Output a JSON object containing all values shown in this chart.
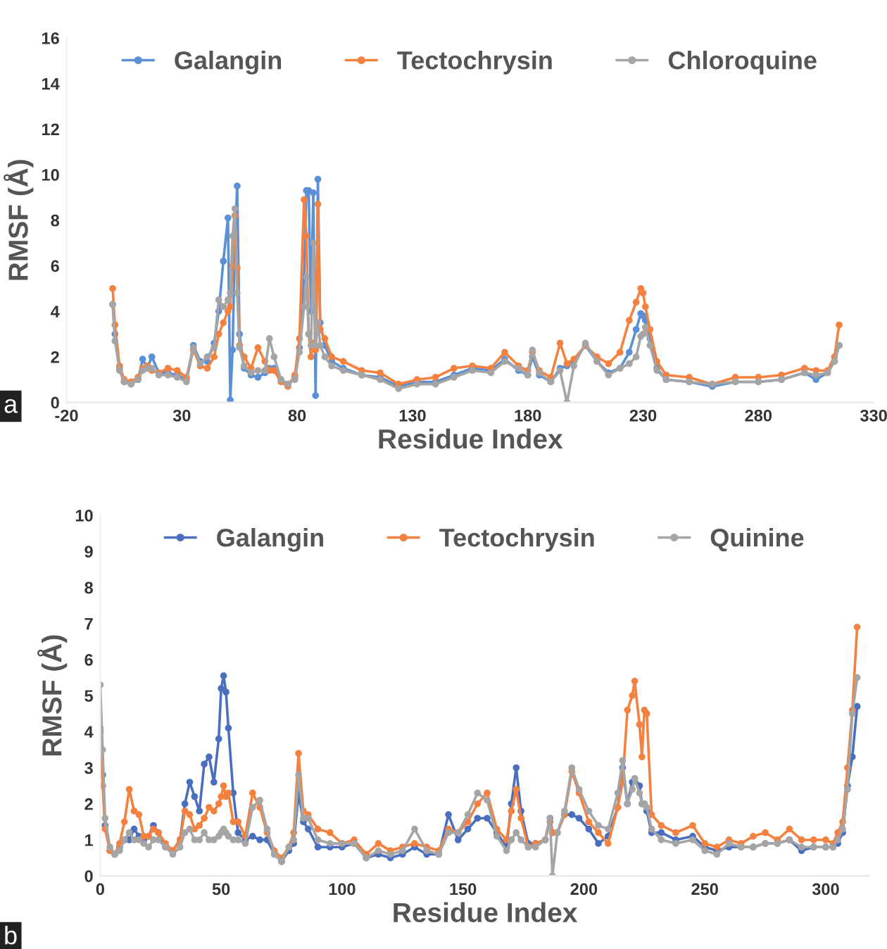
{
  "chart_data": [
    {
      "type": "line",
      "xlabel": "Residue Index",
      "ylabel": "RMSF (Å)",
      "annotations": [
        "a"
      ],
      "xlim": [
        -20,
        330
      ],
      "xticks": [
        -20,
        30,
        80,
        130,
        180,
        230,
        280,
        330
      ],
      "ylim": [
        0,
        16
      ],
      "yticks": [
        0,
        2,
        4,
        6,
        8,
        10,
        12,
        14,
        16
      ],
      "legend": "top",
      "grid": false,
      "marker": "circle",
      "line_style": "solid",
      "x": [
        0,
        1,
        3,
        5,
        8,
        11,
        13,
        15,
        17,
        20,
        24,
        28,
        32,
        35,
        38,
        41,
        44,
        46,
        48,
        50,
        51,
        52,
        53,
        54,
        55,
        57,
        60,
        63,
        66,
        68,
        70,
        73,
        76,
        79,
        81,
        83,
        84,
        85,
        86,
        87,
        88,
        89,
        90,
        92,
        95,
        100,
        108,
        116,
        124,
        132,
        140,
        148,
        156,
        164,
        170,
        176,
        180,
        182,
        185,
        190,
        194,
        197,
        200,
        205,
        210,
        215,
        220,
        224,
        227,
        229,
        230,
        231,
        233,
        236,
        240,
        250,
        260,
        270,
        280,
        290,
        300,
        305,
        310,
        313,
        315
      ],
      "series": [
        {
          "name": "Galangin",
          "color": "#5b8fd6",
          "values": [
            4.3,
            3.0,
            1.5,
            0.9,
            0.8,
            1.0,
            1.9,
            1.5,
            2.0,
            1.3,
            1.3,
            1.2,
            1.0,
            2.5,
            1.8,
            1.8,
            2.6,
            4.0,
            6.2,
            8.1,
            0.1,
            2.3,
            7.0,
            9.5,
            3.0,
            1.5,
            1.2,
            1.1,
            1.3,
            1.5,
            1.5,
            1.0,
            0.8,
            1.1,
            2.4,
            5.5,
            9.3,
            9.3,
            4.0,
            9.2,
            0.3,
            9.8,
            3.5,
            2.5,
            1.8,
            1.5,
            1.2,
            1.1,
            0.7,
            0.9,
            0.9,
            1.2,
            1.5,
            1.4,
            1.9,
            1.4,
            1.2,
            2.0,
            1.2,
            0.9,
            1.5,
            1.6,
            1.8,
            2.5,
            1.8,
            1.3,
            1.5,
            2.2,
            3.2,
            3.9,
            3.8,
            3.6,
            2.8,
            1.5,
            1.0,
            0.9,
            0.7,
            0.9,
            0.9,
            1.0,
            1.3,
            1.0,
            1.3,
            1.8,
            2.5
          ]
        },
        {
          "name": "Tectochrysin",
          "color": "#f4813f",
          "values": [
            5.0,
            3.4,
            1.6,
            1.0,
            0.9,
            1.1,
            1.5,
            1.6,
            1.4,
            1.3,
            1.5,
            1.4,
            1.1,
            2.3,
            1.6,
            1.5,
            2.0,
            3.0,
            3.5,
            4.0,
            4.2,
            6.0,
            8.2,
            5.9,
            2.5,
            2.0,
            1.5,
            2.4,
            1.8,
            1.4,
            1.4,
            0.9,
            0.7,
            1.2,
            2.8,
            8.9,
            7.3,
            3.0,
            2.0,
            2.6,
            2.3,
            8.7,
            3.2,
            2.8,
            2.0,
            1.8,
            1.4,
            1.3,
            0.8,
            1.0,
            1.1,
            1.5,
            1.6,
            1.5,
            2.2,
            1.6,
            1.4,
            2.2,
            1.4,
            1.1,
            2.6,
            1.7,
            1.9,
            2.5,
            2.0,
            1.7,
            2.2,
            3.6,
            4.4,
            5.0,
            4.8,
            4.2,
            3.2,
            1.8,
            1.2,
            1.1,
            0.8,
            1.1,
            1.1,
            1.2,
            1.5,
            1.4,
            1.4,
            2.0,
            3.4
          ]
        },
        {
          "name": "Chloroquine",
          "color": "#a5a5a5",
          "values": [
            4.3,
            2.7,
            1.4,
            0.9,
            0.8,
            1.0,
            1.4,
            1.5,
            1.5,
            1.2,
            1.2,
            1.1,
            0.9,
            2.4,
            1.7,
            2.0,
            2.4,
            4.5,
            4.2,
            4.5,
            4.8,
            7.3,
            8.5,
            4.8,
            2.4,
            1.6,
            1.3,
            1.4,
            1.4,
            2.8,
            2.0,
            1.0,
            0.8,
            1.0,
            2.2,
            4.2,
            5.5,
            3.0,
            2.5,
            7.0,
            2.5,
            3.5,
            2.5,
            2.0,
            1.6,
            1.4,
            1.2,
            1.0,
            0.6,
            0.8,
            0.8,
            1.1,
            1.4,
            1.3,
            1.8,
            1.5,
            1.2,
            2.3,
            1.3,
            0.9,
            1.4,
            0.0,
            1.6,
            2.6,
            1.8,
            1.2,
            1.5,
            1.7,
            2.0,
            2.9,
            3.0,
            3.3,
            2.5,
            1.4,
            1.0,
            0.9,
            0.8,
            0.9,
            0.9,
            1.0,
            1.3,
            1.2,
            1.3,
            1.8,
            2.5
          ]
        }
      ]
    },
    {
      "type": "line",
      "xlabel": "Residue Index",
      "ylabel": "RMSF (Å)",
      "annotations": [
        "b"
      ],
      "xlim": [
        0,
        318
      ],
      "xticks": [
        0,
        50,
        100,
        150,
        200,
        250,
        300
      ],
      "ylim": [
        0,
        10
      ],
      "yticks": [
        0,
        1,
        2,
        3,
        4,
        5,
        6,
        7,
        8,
        9,
        10
      ],
      "legend": "top",
      "grid": false,
      "marker": "circle",
      "line_style": "solid",
      "x": [
        0,
        1,
        2,
        4,
        6,
        8,
        10,
        12,
        14,
        16,
        18,
        20,
        22,
        24,
        27,
        30,
        33,
        35,
        37,
        39,
        41,
        43,
        45,
        47,
        49,
        50,
        51,
        52,
        53,
        55,
        57,
        60,
        63,
        66,
        69,
        72,
        75,
        78,
        80,
        82,
        84,
        86,
        90,
        95,
        100,
        105,
        110,
        115,
        120,
        125,
        130,
        135,
        140,
        144,
        148,
        152,
        156,
        160,
        164,
        168,
        170,
        172,
        174,
        177,
        180,
        184,
        186,
        187,
        189,
        192,
        195,
        198,
        202,
        206,
        210,
        214,
        216,
        218,
        220,
        221,
        223,
        224,
        225,
        226,
        228,
        232,
        238,
        245,
        250,
        255,
        260,
        265,
        270,
        275,
        280,
        285,
        290,
        295,
        300,
        303,
        305,
        307,
        309,
        311,
        313
      ],
      "series": [
        {
          "name": "Galangin",
          "color": "#4a6fbf",
          "values": [
            4.0,
            2.8,
            1.4,
            0.7,
            0.6,
            0.8,
            1.0,
            1.0,
            1.3,
            1.1,
            1.0,
            1.1,
            1.4,
            1.2,
            0.8,
            0.7,
            1.0,
            2.0,
            2.6,
            2.2,
            1.8,
            3.1,
            3.3,
            2.6,
            3.8,
            5.2,
            5.55,
            5.1,
            4.1,
            2.3,
            1.2,
            1.0,
            1.1,
            1.0,
            1.0,
            0.6,
            0.4,
            0.7,
            0.9,
            2.3,
            1.5,
            1.3,
            0.8,
            0.8,
            0.8,
            0.9,
            0.5,
            0.6,
            0.5,
            0.6,
            0.8,
            0.6,
            0.6,
            1.7,
            1.0,
            1.3,
            1.6,
            1.6,
            1.2,
            0.8,
            2.0,
            3.0,
            1.8,
            0.9,
            0.9,
            1.0,
            1.6,
            1.2,
            1.2,
            1.7,
            1.7,
            1.6,
            1.3,
            0.9,
            1.1,
            1.9,
            3.0,
            2.0,
            2.6,
            2.7,
            2.5,
            2.0,
            2.0,
            1.8,
            1.2,
            1.2,
            1.0,
            1.1,
            0.8,
            0.7,
            0.8,
            0.8,
            0.8,
            0.9,
            0.9,
            1.0,
            0.7,
            0.8,
            0.8,
            0.8,
            0.9,
            1.2,
            2.5,
            3.3,
            4.7
          ]
        },
        {
          "name": "Tectochrysin",
          "color": "#f4813f",
          "values": [
            4.1,
            2.5,
            1.3,
            0.7,
            0.6,
            0.9,
            1.5,
            2.4,
            1.8,
            1.7,
            1.1,
            1.1,
            1.3,
            1.2,
            0.9,
            0.7,
            1.0,
            1.8,
            1.7,
            1.3,
            1.4,
            1.6,
            1.9,
            1.8,
            2.0,
            2.2,
            2.5,
            2.2,
            2.3,
            1.5,
            1.5,
            1.1,
            2.3,
            1.9,
            1.2,
            0.7,
            0.5,
            0.8,
            1.2,
            3.4,
            1.8,
            1.7,
            1.3,
            1.2,
            0.9,
            1.0,
            0.6,
            0.9,
            0.7,
            0.8,
            0.9,
            0.8,
            0.7,
            1.3,
            1.2,
            1.5,
            2.0,
            2.3,
            1.3,
            1.0,
            1.8,
            2.4,
            1.6,
            0.8,
            0.9,
            1.0,
            1.5,
            1.2,
            1.2,
            1.7,
            2.9,
            2.3,
            1.5,
            1.2,
            0.9,
            1.9,
            2.6,
            4.6,
            5.0,
            5.4,
            4.2,
            3.3,
            4.6,
            4.5,
            1.7,
            1.4,
            1.2,
            1.4,
            0.9,
            0.8,
            1.0,
            0.9,
            1.1,
            1.2,
            1.0,
            1.3,
            1.0,
            1.0,
            1.0,
            0.9,
            1.2,
            1.5,
            3.0,
            4.6,
            6.9
          ]
        },
        {
          "name": "Quinine",
          "color": "#a5a5a5",
          "values": [
            5.3,
            3.5,
            1.6,
            0.8,
            0.6,
            0.7,
            1.0,
            1.2,
            1.0,
            1.0,
            0.9,
            0.8,
            1.0,
            1.0,
            0.8,
            0.6,
            0.8,
            1.2,
            1.3,
            1.0,
            1.0,
            1.2,
            1.0,
            1.0,
            1.1,
            1.2,
            1.3,
            1.2,
            1.1,
            1.0,
            1.0,
            0.9,
            1.9,
            2.1,
            1.3,
            0.6,
            0.4,
            0.8,
            1.0,
            2.8,
            1.6,
            1.6,
            1.0,
            0.9,
            0.9,
            0.9,
            0.5,
            0.7,
            0.6,
            0.7,
            1.3,
            0.7,
            0.6,
            1.2,
            1.2,
            1.7,
            2.3,
            2.1,
            1.1,
            0.7,
            1.0,
            1.2,
            1.0,
            0.8,
            0.8,
            1.0,
            1.6,
            0.0,
            1.2,
            1.8,
            3.0,
            2.4,
            1.8,
            1.4,
            1.3,
            2.3,
            3.2,
            2.0,
            2.4,
            2.7,
            2.3,
            2.0,
            2.0,
            1.9,
            1.3,
            1.0,
            0.9,
            1.0,
            0.7,
            0.6,
            0.9,
            0.8,
            0.8,
            0.9,
            0.9,
            1.0,
            0.8,
            0.8,
            0.8,
            0.8,
            1.0,
            1.3,
            2.4,
            4.5,
            5.5
          ]
        }
      ]
    }
  ]
}
